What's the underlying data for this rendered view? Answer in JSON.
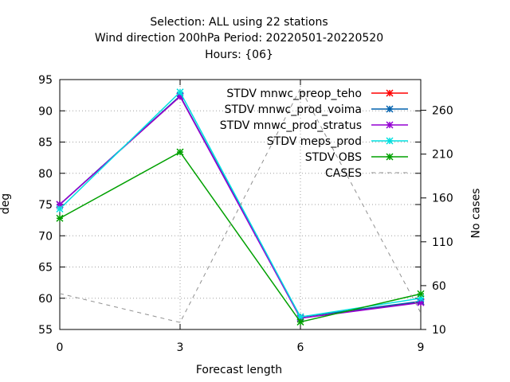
{
  "chart_data": {
    "type": "line",
    "title_lines": [
      "Selection: ALL using     22 stations",
      "Wind direction 200hPa   Period: 20220501-20220520",
      "Hours: {06}"
    ],
    "xlabel": "Forecast length",
    "ylabel": "deg",
    "y2label": "No cases",
    "x": [
      0,
      3,
      6,
      9
    ],
    "xlim": [
      0,
      9
    ],
    "ylim": [
      55,
      95
    ],
    "y2lim": [
      10,
      295
    ],
    "xticks": [
      "0",
      "3",
      "6",
      "9"
    ],
    "yticks": [
      55,
      60,
      65,
      70,
      75,
      80,
      85,
      90,
      95
    ],
    "y2ticks": [
      10,
      60,
      110,
      160,
      210,
      260
    ],
    "grid": true,
    "legend_position": "top-right",
    "series": [
      {
        "name": "STDV mnwc_preop_teho",
        "color": "#ff0000",
        "axis": "y",
        "values": [
          75.0,
          92.3,
          57.0,
          59.4
        ]
      },
      {
        "name": "STDV mnwc_prod_voima",
        "color": "#0060ad",
        "axis": "y",
        "values": [
          75.0,
          92.4,
          57.0,
          59.5
        ]
      },
      {
        "name": "STDV mnwc_prod_stratus",
        "color": "#9400d3",
        "axis": "y",
        "values": [
          75.0,
          92.3,
          56.8,
          59.3
        ]
      },
      {
        "name": "STDV meps_prod",
        "color": "#00e0e0",
        "axis": "y",
        "values": [
          74.3,
          93.0,
          57.0,
          60.0
        ]
      },
      {
        "name": "STDV OBS",
        "color": "#00a000",
        "axis": "y",
        "values": [
          72.8,
          83.4,
          56.2,
          60.7
        ]
      },
      {
        "name": "CASES",
        "color": "#909090",
        "axis": "y2",
        "dashed": true,
        "values": [
          51,
          18,
          285,
          29
        ]
      }
    ]
  }
}
